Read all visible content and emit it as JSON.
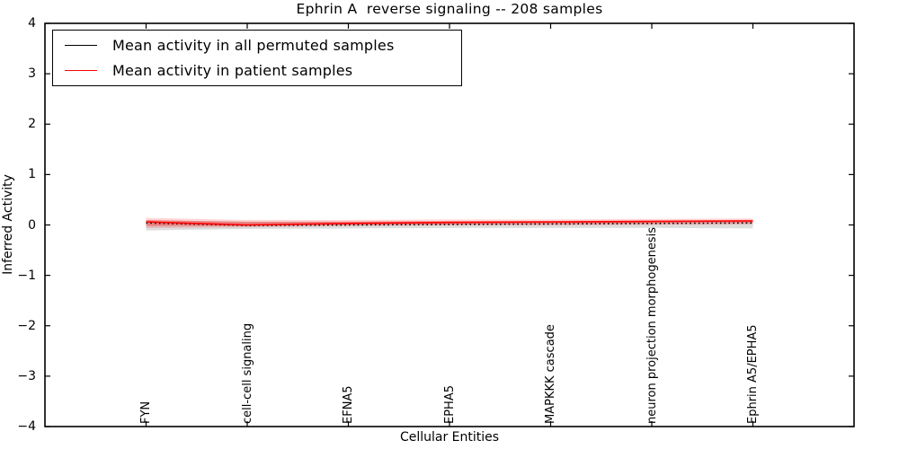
{
  "chart_data": {
    "type": "line",
    "title": "Ephrin A  reverse signaling -- 208 samples",
    "xlabel": "Cellular Entities",
    "ylabel": "Inferred Activity",
    "ylim": [
      -4,
      4
    ],
    "yticks": [
      4,
      3,
      2,
      1,
      0,
      -1,
      -2,
      -3,
      -4
    ],
    "ytick_labels": [
      "4",
      "3",
      "2",
      "1",
      "0",
      "−1",
      "−2",
      "−3",
      "−4"
    ],
    "grid": false,
    "legend_position": "upper left",
    "categories": [
      "FYN",
      "cell-cell signaling",
      "EFNA5",
      "EPHA5",
      "MAPKKK cascade",
      "neuron projection morphogenesis",
      "Ephrin A5/EPHA5"
    ],
    "series": [
      {
        "name": "Mean activity in all permuted samples",
        "color": "#000000",
        "line_style": "dotted",
        "values": [
          0.04,
          -0.01,
          0.0,
          0.01,
          0.02,
          0.03,
          0.04
        ]
      },
      {
        "name": "Mean activity in patient samples",
        "color": "#ff0000",
        "line_style": "solid",
        "values": [
          0.06,
          0.0,
          0.03,
          0.05,
          0.06,
          0.07,
          0.08
        ]
      }
    ],
    "bands": [
      {
        "name": "permuted-samples-spread",
        "color": "#000000",
        "opacity": 0.13,
        "upper": [
          0.09,
          0.07,
          0.06,
          0.06,
          0.06,
          0.06,
          0.07
        ],
        "lower": [
          -0.11,
          -0.08,
          -0.07,
          -0.06,
          -0.06,
          -0.06,
          -0.07
        ]
      },
      {
        "name": "patient-samples-spread-outer",
        "color": "#ff0000",
        "opacity": 0.16,
        "upper": [
          0.14,
          0.1,
          0.1,
          0.11,
          0.11,
          0.12,
          0.13
        ],
        "lower": [
          -0.06,
          -0.05,
          -0.02,
          -0.01,
          -0.01,
          0.0,
          0.01
        ]
      },
      {
        "name": "patient-samples-spread-inner",
        "color": "#ff0000",
        "opacity": 0.3,
        "upper": [
          0.1,
          0.06,
          0.07,
          0.08,
          0.08,
          0.09,
          0.1
        ],
        "lower": [
          -0.02,
          -0.02,
          0.0,
          0.01,
          0.02,
          0.03,
          0.04
        ]
      }
    ]
  }
}
